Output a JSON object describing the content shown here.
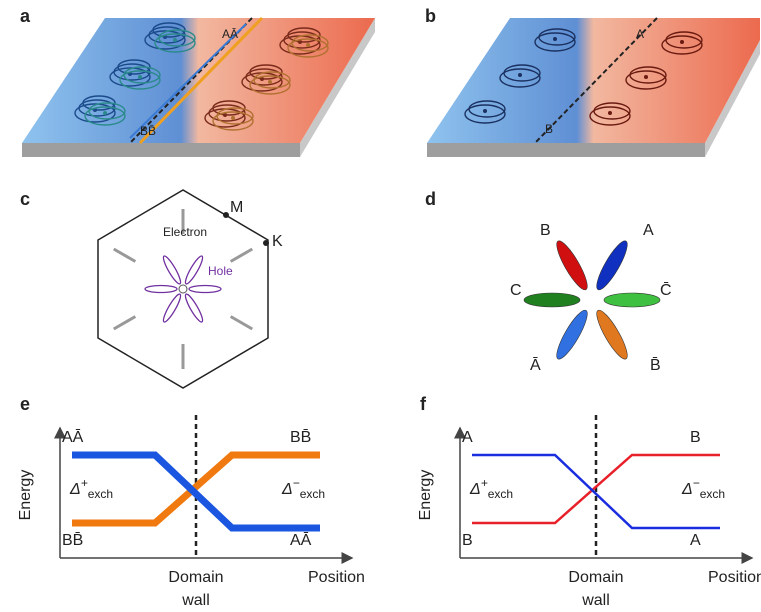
{
  "panel_a": {
    "letter": "a",
    "top_label": "AĀ",
    "bottom_label": "BB̄"
  },
  "panel_b": {
    "letter": "b",
    "top_label": "A",
    "bottom_label": "B"
  },
  "panel_c": {
    "letter": "c",
    "m_label": "M",
    "k_label": "K",
    "electron_label": "Electron",
    "hole_label": "Hole"
  },
  "panel_d": {
    "letter": "d",
    "lobe_labels": [
      "B",
      "A",
      "C",
      "C̄",
      "Ā",
      "B̄"
    ]
  },
  "panel_e": {
    "letter": "e",
    "y_axis_label": "Energy",
    "x_axis_label": "Position",
    "wall_label": [
      "Domain",
      "wall"
    ],
    "left_top": "AĀ",
    "left_bottom": "BB̄",
    "right_top": "BB̄",
    "right_bottom": "AĀ",
    "delta_left": {
      "symbol": "Δ",
      "sup": "+",
      "sub": "exch"
    },
    "delta_right": {
      "symbol": "Δ",
      "sup": "−",
      "sub": "exch"
    }
  },
  "panel_f": {
    "letter": "f",
    "y_axis_label": "Energy",
    "x_axis_label": "Position",
    "wall_label": [
      "Domain",
      "wall"
    ],
    "left_top": "A",
    "left_bottom": "B",
    "right_top": "B",
    "right_bottom": "A",
    "delta_left": {
      "symbol": "Δ",
      "sup": "+",
      "sub": "exch"
    },
    "delta_right": {
      "symbol": "Δ",
      "sup": "−",
      "sub": "exch"
    }
  }
}
